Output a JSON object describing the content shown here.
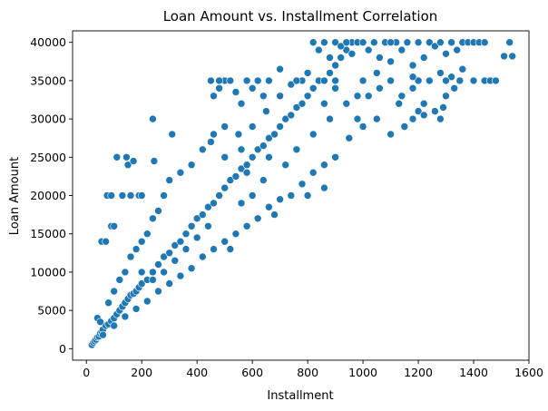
{
  "chart_data": {
    "type": "scatter",
    "title": "Loan Amount vs. Installment Correlation",
    "xlabel": "Installment",
    "ylabel": "Loan Amount",
    "xlim": [
      -50,
      1600
    ],
    "ylim": [
      -1500,
      41500
    ],
    "xticks": [
      0,
      200,
      400,
      600,
      800,
      1000,
      1200,
      1400,
      1600
    ],
    "yticks": [
      0,
      5000,
      10000,
      15000,
      20000,
      25000,
      30000,
      35000,
      40000
    ],
    "xtick_labels": [
      "0",
      "200",
      "400",
      "600",
      "800",
      "1000",
      "1200",
      "1400",
      "1600"
    ],
    "ytick_labels": [
      "0",
      "5000",
      "10000",
      "15000",
      "20000",
      "25000",
      "30000",
      "35000",
      "40000"
    ],
    "grid": false,
    "marker_color": "#1f77b4",
    "marker_edge_color": "#ffffff",
    "series": [
      {
        "points": [
          [
            20,
            500
          ],
          [
            25,
            800
          ],
          [
            30,
            1000
          ],
          [
            35,
            1200
          ],
          [
            40,
            1500
          ],
          [
            45,
            1600
          ],
          [
            50,
            2000
          ],
          [
            55,
            2200
          ],
          [
            60,
            2500
          ],
          [
            70,
            3000
          ],
          [
            80,
            3200
          ],
          [
            90,
            3600
          ],
          [
            100,
            4000
          ],
          [
            110,
            4500
          ],
          [
            120,
            5000
          ],
          [
            130,
            5500
          ],
          [
            140,
            6000
          ],
          [
            150,
            6500
          ],
          [
            160,
            7000
          ],
          [
            170,
            7200
          ],
          [
            180,
            7500
          ],
          [
            190,
            8000
          ],
          [
            200,
            8500
          ],
          [
            220,
            9000
          ],
          [
            240,
            10000
          ],
          [
            260,
            11000
          ],
          [
            280,
            12000
          ],
          [
            300,
            12500
          ],
          [
            320,
            13500
          ],
          [
            340,
            14000
          ],
          [
            360,
            15000
          ],
          [
            380,
            16000
          ],
          [
            400,
            17000
          ],
          [
            420,
            17500
          ],
          [
            440,
            18500
          ],
          [
            460,
            19000
          ],
          [
            480,
            20000
          ],
          [
            500,
            21000
          ],
          [
            520,
            22000
          ],
          [
            540,
            22500
          ],
          [
            560,
            23500
          ],
          [
            580,
            24000
          ],
          [
            600,
            25000
          ],
          [
            620,
            26000
          ],
          [
            640,
            26500
          ],
          [
            660,
            27500
          ],
          [
            680,
            28000
          ],
          [
            700,
            29000
          ],
          [
            720,
            30000
          ],
          [
            740,
            30500
          ],
          [
            760,
            31500
          ],
          [
            780,
            32000
          ],
          [
            800,
            33000
          ],
          [
            820,
            34000
          ],
          [
            840,
            35000
          ],
          [
            860,
            35000
          ],
          [
            880,
            36000
          ],
          [
            900,
            37000
          ],
          [
            920,
            38000
          ],
          [
            940,
            39000
          ],
          [
            960,
            40000
          ],
          [
            40,
            4000
          ],
          [
            50,
            3500
          ],
          [
            55,
            14000
          ],
          [
            70,
            14000
          ],
          [
            75,
            20000
          ],
          [
            90,
            20000
          ],
          [
            90,
            16000
          ],
          [
            100,
            16000
          ],
          [
            110,
            25000
          ],
          [
            130,
            20000
          ],
          [
            145,
            25000
          ],
          [
            150,
            24000
          ],
          [
            160,
            20000
          ],
          [
            170,
            24500
          ],
          [
            190,
            20000
          ],
          [
            200,
            20000
          ],
          [
            240,
            30000
          ],
          [
            245,
            24500
          ],
          [
            310,
            28000
          ],
          [
            450,
            35000
          ],
          [
            460,
            33000
          ],
          [
            480,
            34000
          ],
          [
            500,
            35000
          ],
          [
            520,
            35000
          ],
          [
            540,
            33500
          ],
          [
            560,
            32000
          ],
          [
            580,
            35000
          ],
          [
            600,
            34000
          ],
          [
            620,
            35000
          ],
          [
            640,
            33000
          ],
          [
            660,
            35000
          ],
          [
            700,
            36500
          ],
          [
            740,
            34500
          ],
          [
            780,
            35000
          ],
          [
            800,
            36000
          ],
          [
            820,
            40000
          ],
          [
            840,
            39000
          ],
          [
            860,
            40000
          ],
          [
            880,
            38000
          ],
          [
            900,
            40000
          ],
          [
            920,
            39500
          ],
          [
            940,
            40000
          ],
          [
            960,
            38500
          ],
          [
            980,
            40000
          ],
          [
            1000,
            40000
          ],
          [
            1020,
            39000
          ],
          [
            1040,
            40000
          ],
          [
            1060,
            38000
          ],
          [
            1080,
            40000
          ],
          [
            1100,
            37500
          ],
          [
            1120,
            40000
          ],
          [
            1140,
            39000
          ],
          [
            1160,
            40000
          ],
          [
            1180,
            37000
          ],
          [
            1200,
            40000
          ],
          [
            1220,
            38000
          ],
          [
            1240,
            40000
          ],
          [
            1260,
            39500
          ],
          [
            1280,
            40000
          ],
          [
            1300,
            38500
          ],
          [
            1320,
            40000
          ],
          [
            1340,
            39000
          ],
          [
            1360,
            40000
          ],
          [
            1380,
            40000
          ],
          [
            1400,
            40000
          ],
          [
            1420,
            40000
          ],
          [
            1440,
            40000
          ],
          [
            1360,
            36500
          ],
          [
            1400,
            35000
          ],
          [
            1440,
            35000
          ],
          [
            1460,
            35000
          ],
          [
            1480,
            35000
          ],
          [
            1510,
            38200
          ],
          [
            1530,
            40000
          ],
          [
            1540,
            38200
          ],
          [
            1180,
            30000
          ],
          [
            1260,
            31000
          ],
          [
            1280,
            30000
          ],
          [
            1220,
            32000
          ],
          [
            1000,
            29000
          ],
          [
            1050,
            30000
          ],
          [
            1100,
            28000
          ],
          [
            1150,
            29000
          ],
          [
            1200,
            31000
          ],
          [
            1300,
            33000
          ],
          [
            1330,
            34000
          ],
          [
            1350,
            35000
          ],
          [
            950,
            27500
          ],
          [
            900,
            25000
          ],
          [
            860,
            24000
          ],
          [
            820,
            23000
          ],
          [
            780,
            21500
          ],
          [
            740,
            20000
          ],
          [
            700,
            19500
          ],
          [
            660,
            18500
          ],
          [
            620,
            17000
          ],
          [
            580,
            16000
          ],
          [
            540,
            15000
          ],
          [
            500,
            14000
          ],
          [
            460,
            13000
          ],
          [
            420,
            12000
          ],
          [
            380,
            10500
          ],
          [
            340,
            9500
          ],
          [
            300,
            8500
          ],
          [
            260,
            7500
          ],
          [
            220,
            6200
          ],
          [
            180,
            5200
          ],
          [
            140,
            4200
          ],
          [
            100,
            3000
          ],
          [
            60,
            1800
          ],
          [
            800,
            20000
          ],
          [
            860,
            21000
          ],
          [
            520,
            13000
          ],
          [
            680,
            17500
          ],
          [
            720,
            24000
          ],
          [
            560,
            26000
          ],
          [
            500,
            25000
          ],
          [
            450,
            27000
          ],
          [
            420,
            26000
          ],
          [
            380,
            24000
          ],
          [
            340,
            23000
          ],
          [
            300,
            22000
          ],
          [
            280,
            20000
          ],
          [
            260,
            18000
          ],
          [
            240,
            17000
          ],
          [
            220,
            15000
          ],
          [
            200,
            14000
          ],
          [
            180,
            13000
          ],
          [
            160,
            12000
          ],
          [
            140,
            10000
          ],
          [
            120,
            9000
          ],
          [
            100,
            7500
          ],
          [
            80,
            6000
          ],
          [
            880,
            30000
          ],
          [
            860,
            32000
          ],
          [
            900,
            34000
          ],
          [
            940,
            32000
          ],
          [
            980,
            30000
          ],
          [
            1020,
            33000
          ],
          [
            1060,
            34000
          ],
          [
            1100,
            35000
          ],
          [
            1140,
            33000
          ],
          [
            1180,
            34000
          ],
          [
            1240,
            35000
          ],
          [
            1280,
            36000
          ],
          [
            1320,
            35500
          ],
          [
            700,
            33000
          ],
          [
            650,
            31000
          ],
          [
            600,
            29000
          ],
          [
            550,
            28000
          ],
          [
            500,
            29000
          ],
          [
            460,
            28000
          ],
          [
            640,
            22000
          ],
          [
            600,
            20000
          ],
          [
            560,
            19000
          ],
          [
            760,
            26000
          ],
          [
            820,
            28000
          ],
          [
            440,
            16000
          ],
          [
            400,
            14500
          ],
          [
            360,
            13000
          ],
          [
            320,
            11500
          ],
          [
            280,
            10000
          ],
          [
            240,
            9000
          ],
          [
            200,
            10000
          ],
          [
            760,
            35000
          ],
          [
            480,
            35000
          ],
          [
            900,
            35000
          ],
          [
            1000,
            35000
          ],
          [
            1200,
            35000
          ],
          [
            1300,
            35000
          ],
          [
            1100,
            40000
          ],
          [
            1180,
            35500
          ],
          [
            1050,
            36000
          ],
          [
            980,
            33000
          ],
          [
            1130,
            32000
          ],
          [
            1220,
            30500
          ],
          [
            1290,
            31500
          ],
          [
            660,
            25000
          ],
          [
            580,
            23000
          ]
        ]
      }
    ]
  }
}
